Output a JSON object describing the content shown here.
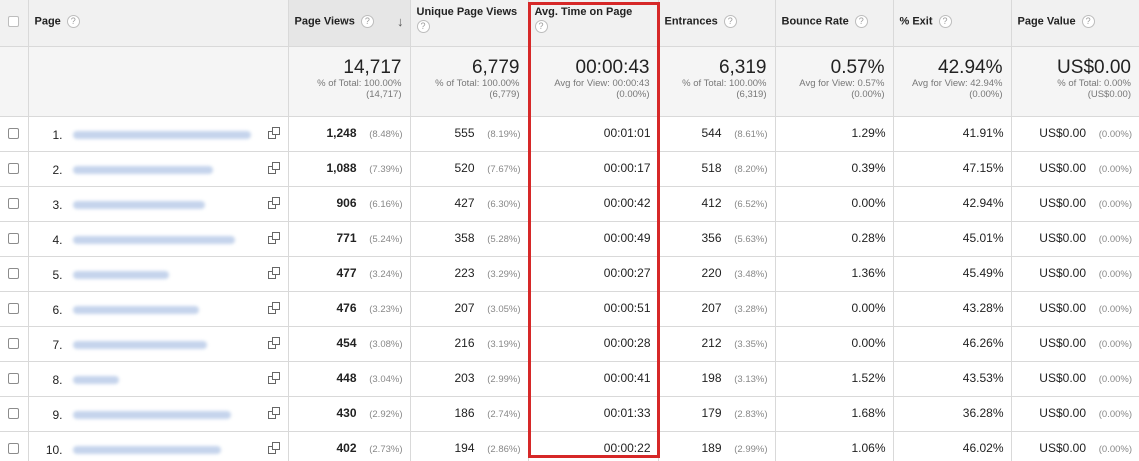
{
  "columns": [
    {
      "label": "Page"
    },
    {
      "label": "Page Views"
    },
    {
      "label": "Unique Page Views"
    },
    {
      "label": "Avg. Time on Page"
    },
    {
      "label": "Entrances"
    },
    {
      "label": "Bounce Rate"
    },
    {
      "label": "% Exit"
    },
    {
      "label": "Page Value"
    }
  ],
  "help_glyph": "?",
  "sort_arrow": "↓",
  "totals": [
    {
      "value": "14,717",
      "line1": "% of Total: 100.00%",
      "line2": "(14,717)"
    },
    {
      "value": "6,779",
      "line1": "% of Total: 100.00%",
      "line2": "(6,779)"
    },
    {
      "value": "00:00:43",
      "line1": "Avg for View: 00:00:43",
      "line2": "(0.00%)"
    },
    {
      "value": "6,319",
      "line1": "% of Total: 100.00%",
      "line2": "(6,319)"
    },
    {
      "value": "0.57%",
      "line1": "Avg for View: 0.57%",
      "line2": "(0.00%)"
    },
    {
      "value": "42.94%",
      "line1": "Avg for View: 42.94%",
      "line2": "(0.00%)"
    },
    {
      "value": "US$0.00",
      "line1": "% of Total: 0.00%",
      "line2": "(US$0.00)"
    }
  ],
  "rows": [
    {
      "idx": "1.",
      "pv": "1,248",
      "pv_pct": "(8.48%)",
      "upv": "555",
      "upv_pct": "(8.19%)",
      "time": "00:01:01",
      "ent": "544",
      "ent_pct": "(8.61%)",
      "bounce": "1.29%",
      "exit": "41.91%",
      "val": "US$0.00",
      "val_pct": "(0.00%)"
    },
    {
      "idx": "2.",
      "pv": "1,088",
      "pv_pct": "(7.39%)",
      "upv": "520",
      "upv_pct": "(7.67%)",
      "time": "00:00:17",
      "ent": "518",
      "ent_pct": "(8.20%)",
      "bounce": "0.39%",
      "exit": "47.15%",
      "val": "US$0.00",
      "val_pct": "(0.00%)"
    },
    {
      "idx": "3.",
      "pv": "906",
      "pv_pct": "(6.16%)",
      "upv": "427",
      "upv_pct": "(6.30%)",
      "time": "00:00:42",
      "ent": "412",
      "ent_pct": "(6.52%)",
      "bounce": "0.00%",
      "exit": "42.94%",
      "val": "US$0.00",
      "val_pct": "(0.00%)"
    },
    {
      "idx": "4.",
      "pv": "771",
      "pv_pct": "(5.24%)",
      "upv": "358",
      "upv_pct": "(5.28%)",
      "time": "00:00:49",
      "ent": "356",
      "ent_pct": "(5.63%)",
      "bounce": "0.28%",
      "exit": "45.01%",
      "val": "US$0.00",
      "val_pct": "(0.00%)"
    },
    {
      "idx": "5.",
      "pv": "477",
      "pv_pct": "(3.24%)",
      "upv": "223",
      "upv_pct": "(3.29%)",
      "time": "00:00:27",
      "ent": "220",
      "ent_pct": "(3.48%)",
      "bounce": "1.36%",
      "exit": "45.49%",
      "val": "US$0.00",
      "val_pct": "(0.00%)"
    },
    {
      "idx": "6.",
      "pv": "476",
      "pv_pct": "(3.23%)",
      "upv": "207",
      "upv_pct": "(3.05%)",
      "time": "00:00:51",
      "ent": "207",
      "ent_pct": "(3.28%)",
      "bounce": "0.00%",
      "exit": "43.28%",
      "val": "US$0.00",
      "val_pct": "(0.00%)"
    },
    {
      "idx": "7.",
      "pv": "454",
      "pv_pct": "(3.08%)",
      "upv": "216",
      "upv_pct": "(3.19%)",
      "time": "00:00:28",
      "ent": "212",
      "ent_pct": "(3.35%)",
      "bounce": "0.00%",
      "exit": "46.26%",
      "val": "US$0.00",
      "val_pct": "(0.00%)"
    },
    {
      "idx": "8.",
      "pv": "448",
      "pv_pct": "(3.04%)",
      "upv": "203",
      "upv_pct": "(2.99%)",
      "time": "00:00:41",
      "ent": "198",
      "ent_pct": "(3.13%)",
      "bounce": "1.52%",
      "exit": "43.53%",
      "val": "US$0.00",
      "val_pct": "(0.00%)"
    },
    {
      "idx": "9.",
      "pv": "430",
      "pv_pct": "(2.92%)",
      "upv": "186",
      "upv_pct": "(2.74%)",
      "time": "00:01:33",
      "ent": "179",
      "ent_pct": "(2.83%)",
      "bounce": "1.68%",
      "exit": "36.28%",
      "val": "US$0.00",
      "val_pct": "(0.00%)"
    },
    {
      "idx": "10.",
      "pv": "402",
      "pv_pct": "(2.73%)",
      "upv": "194",
      "upv_pct": "(2.86%)",
      "time": "00:00:22",
      "ent": "189",
      "ent_pct": "(2.99%)",
      "bounce": "1.06%",
      "exit": "46.02%",
      "val": "US$0.00",
      "val_pct": "(0.00%)"
    }
  ],
  "colors": {
    "highlight_border": "#d62828",
    "header_bg": "#f1f1f1",
    "blurred_link": "#c5d4ec"
  }
}
